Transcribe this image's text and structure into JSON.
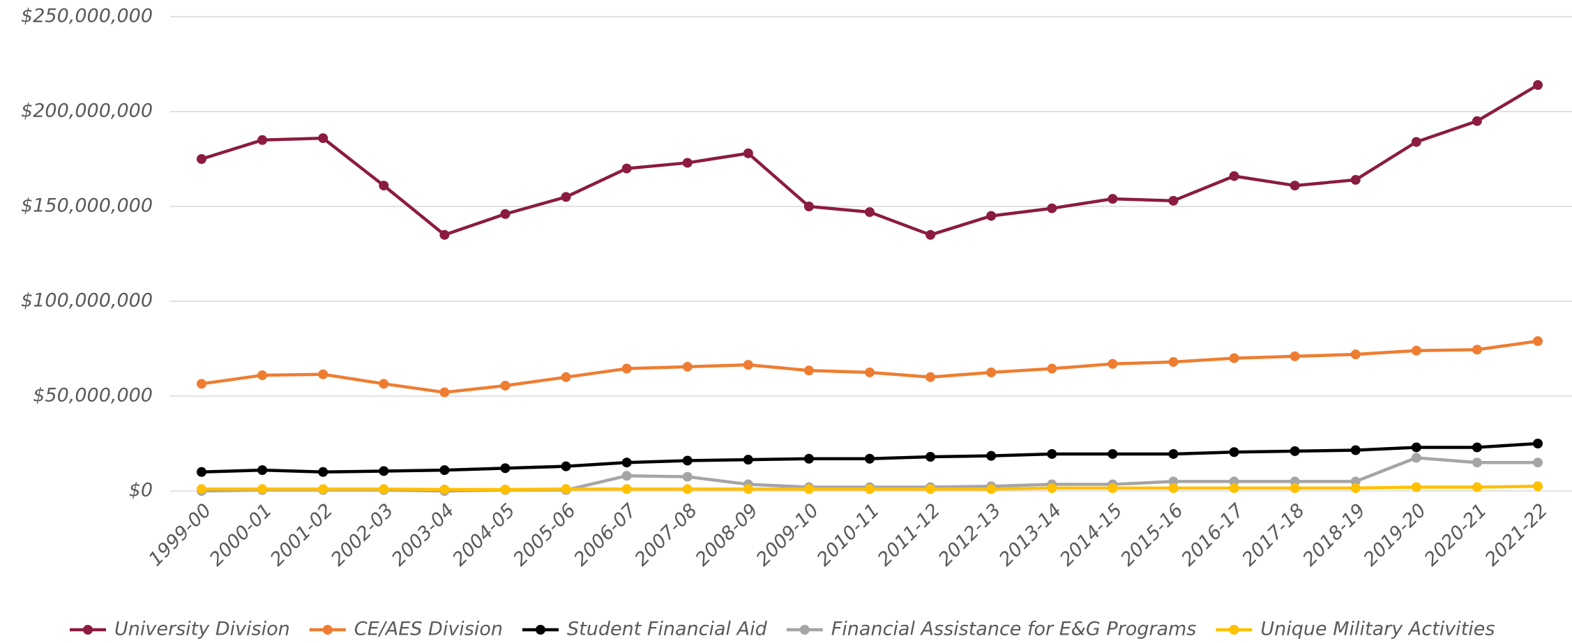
{
  "chart_data": {
    "type": "line",
    "categories": [
      "1999-00",
      "2000-01",
      "2001-02",
      "2002-03",
      "2003-04",
      "2004-05",
      "2005-06",
      "2006-07",
      "2007-08",
      "2008-09",
      "2009-10",
      "2010-11",
      "2011-12",
      "2012-13",
      "2013-14",
      "2014-15",
      "2015-16",
      "2016-17",
      "2017-18",
      "2018-19",
      "2019-20",
      "2020-21",
      "2021-22"
    ],
    "series": [
      {
        "name": "University Division",
        "color": "#8b1c3f",
        "values": [
          175000000,
          185000000,
          186000000,
          161000000,
          135000000,
          146000000,
          155000000,
          170000000,
          173000000,
          178000000,
          150000000,
          147000000,
          135000000,
          145000000,
          149000000,
          154000000,
          153000000,
          166000000,
          161000000,
          164000000,
          184000000,
          195000000,
          214000000
        ]
      },
      {
        "name": "CE/AES Division",
        "color": "#ee7d31",
        "values": [
          56500000,
          61000000,
          61500000,
          56500000,
          52000000,
          55500000,
          60000000,
          64500000,
          65500000,
          66500000,
          63500000,
          62500000,
          60000000,
          62500000,
          64500000,
          67000000,
          68000000,
          70000000,
          71000000,
          72000000,
          74000000,
          74500000,
          79000000
        ]
      },
      {
        "name": "Student Financial Aid",
        "color": "#000000",
        "values": [
          10000000,
          11000000,
          10000000,
          10500000,
          11000000,
          12000000,
          13000000,
          15000000,
          16000000,
          16500000,
          17000000,
          17000000,
          18000000,
          18500000,
          19500000,
          19500000,
          19500000,
          20500000,
          21000000,
          21500000,
          23000000,
          23000000,
          25000000
        ]
      },
      {
        "name": "Financial Assistance for E&G Programs",
        "color": "#a5a5a5",
        "values": [
          0,
          500000,
          500000,
          500000,
          0,
          500000,
          500000,
          8000000,
          7500000,
          3500000,
          2000000,
          2000000,
          2000000,
          2500000,
          3500000,
          3500000,
          5000000,
          5000000,
          5000000,
          5000000,
          17500000,
          15000000,
          15000000
        ]
      },
      {
        "name": "Unique Military Activities",
        "color": "#ffc000",
        "values": [
          1000000,
          1000000,
          1000000,
          1000000,
          800000,
          800000,
          1000000,
          1000000,
          1000000,
          1000000,
          1000000,
          1000000,
          1000000,
          1000000,
          1500000,
          1500000,
          1500000,
          1500000,
          1500000,
          1500000,
          2000000,
          2000000,
          2500000
        ]
      }
    ],
    "ylim": [
      0,
      250000000
    ],
    "yticks": [
      {
        "value": 0,
        "label": "$0"
      },
      {
        "value": 50000000,
        "label": "$50,000,000"
      },
      {
        "value": 100000000,
        "label": "$100,000,000"
      },
      {
        "value": 150000000,
        "label": "$150,000,000"
      },
      {
        "value": 200000000,
        "label": "$200,000,000"
      },
      {
        "value": 250000000,
        "label": "$250,000,000"
      }
    ],
    "grid": true,
    "legend": "bottom"
  }
}
